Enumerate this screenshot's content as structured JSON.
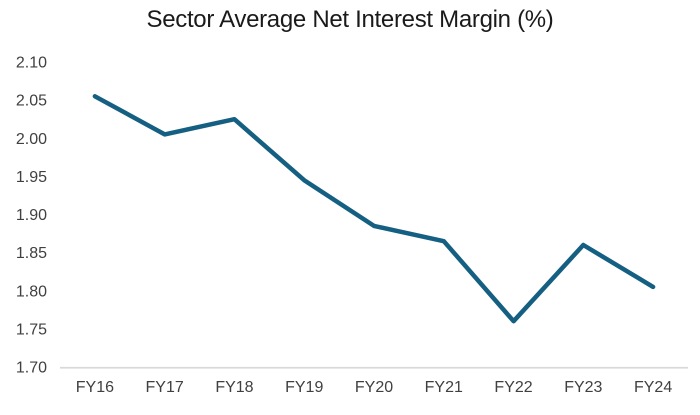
{
  "chart_data": {
    "type": "line",
    "title": "Sector Average Net Interest Margin (%)",
    "categories": [
      "FY16",
      "FY17",
      "FY18",
      "FY19",
      "FY20",
      "FY21",
      "FY22",
      "FY23",
      "FY24"
    ],
    "values": [
      2.055,
      2.005,
      2.025,
      1.945,
      1.885,
      1.865,
      1.76,
      1.86,
      1.805
    ],
    "xlabel": "",
    "ylabel": "",
    "ylim": [
      1.7,
      2.1
    ],
    "y_tick_step": 0.05,
    "y_ticks": [
      "2.10",
      "2.05",
      "2.00",
      "1.95",
      "1.90",
      "1.85",
      "1.80",
      "1.75",
      "1.70"
    ],
    "grid": false,
    "legend": "none",
    "colors": {
      "line": "#156082",
      "axis_line": "#d9d9d9",
      "tick_labels": "#404040",
      "title": "#1a1a1a",
      "background": "#ffffff"
    }
  }
}
